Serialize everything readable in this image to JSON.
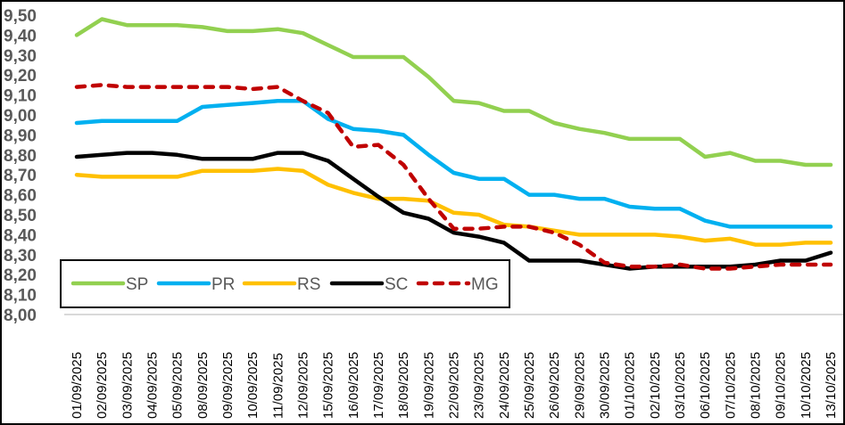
{
  "chart_data": {
    "type": "line",
    "title": "",
    "xlabel": "",
    "ylabel": "",
    "ylim": [
      8.0,
      9.5
    ],
    "y_ticks": [
      "8,00",
      "8,10",
      "8,20",
      "8,30",
      "8,40",
      "8,50",
      "8,60",
      "8,70",
      "8,80",
      "8,90",
      "9,00",
      "9,10",
      "9,20",
      "9,30",
      "9,40",
      "9,50"
    ],
    "y_tick_values": [
      8.0,
      8.1,
      8.2,
      8.3,
      8.4,
      8.5,
      8.6,
      8.7,
      8.8,
      8.9,
      9.0,
      9.1,
      9.2,
      9.3,
      9.4,
      9.5
    ],
    "grid": false,
    "legend_position": "bottom-left inside",
    "categories": [
      "01/09/2025",
      "02/09/2025",
      "03/09/2025",
      "04/09/2025",
      "05/09/2025",
      "08/09/2025",
      "09/09/2025",
      "10/09/2025",
      "11/09/2025",
      "12/09/2025",
      "15/09/2025",
      "16/09/2025",
      "17/09/2025",
      "18/09/2025",
      "19/09/2025",
      "22/09/2025",
      "23/09/2025",
      "24/09/2025",
      "25/09/2025",
      "26/09/2025",
      "29/09/2025",
      "30/09/2025",
      "01/10/2025",
      "02/10/2025",
      "03/10/2025",
      "06/10/2025",
      "07/10/2025",
      "08/10/2025",
      "09/10/2025",
      "10/10/2025",
      "13/10/2025"
    ],
    "series": [
      {
        "name": "SP",
        "color": "#92d050",
        "dash": false,
        "values": [
          9.4,
          9.48,
          9.45,
          9.45,
          9.45,
          9.44,
          9.42,
          9.42,
          9.43,
          9.41,
          9.35,
          9.29,
          9.29,
          9.29,
          9.19,
          9.07,
          9.06,
          9.02,
          9.02,
          8.96,
          8.93,
          8.91,
          8.88,
          8.88,
          8.88,
          8.79,
          8.81,
          8.77,
          8.77,
          8.75,
          8.75
        ]
      },
      {
        "name": "PR",
        "color": "#00b0f0",
        "dash": false,
        "values": [
          8.96,
          8.97,
          8.97,
          8.97,
          8.97,
          9.04,
          9.05,
          9.06,
          9.07,
          9.07,
          8.98,
          8.93,
          8.92,
          8.9,
          8.8,
          8.71,
          8.68,
          8.68,
          8.6,
          8.6,
          8.58,
          8.58,
          8.54,
          8.53,
          8.53,
          8.47,
          8.44,
          8.44,
          8.44,
          8.44,
          8.44
        ]
      },
      {
        "name": "RS",
        "color": "#ffc000",
        "dash": false,
        "values": [
          8.7,
          8.69,
          8.69,
          8.69,
          8.69,
          8.72,
          8.72,
          8.72,
          8.73,
          8.72,
          8.65,
          8.61,
          8.58,
          8.58,
          8.57,
          8.51,
          8.5,
          8.45,
          8.44,
          8.42,
          8.4,
          8.4,
          8.4,
          8.4,
          8.39,
          8.37,
          8.38,
          8.35,
          8.35,
          8.36,
          8.36
        ]
      },
      {
        "name": "SC",
        "color": "#000000",
        "dash": false,
        "values": [
          8.79,
          8.8,
          8.81,
          8.81,
          8.8,
          8.78,
          8.78,
          8.78,
          8.81,
          8.81,
          8.77,
          8.68,
          8.59,
          8.51,
          8.48,
          8.41,
          8.39,
          8.36,
          8.27,
          8.27,
          8.27,
          8.25,
          8.23,
          8.24,
          8.24,
          8.24,
          8.24,
          8.25,
          8.27,
          8.27,
          8.31
        ]
      },
      {
        "name": "MG",
        "color": "#c00000",
        "dash": true,
        "values": [
          9.14,
          9.15,
          9.14,
          9.14,
          9.14,
          9.14,
          9.14,
          9.13,
          9.14,
          9.07,
          9.01,
          8.84,
          8.85,
          8.75,
          8.58,
          8.43,
          8.43,
          8.44,
          8.44,
          8.41,
          8.35,
          8.26,
          8.24,
          8.24,
          8.25,
          8.23,
          8.23,
          8.24,
          8.25,
          8.25,
          8.25
        ]
      }
    ]
  }
}
